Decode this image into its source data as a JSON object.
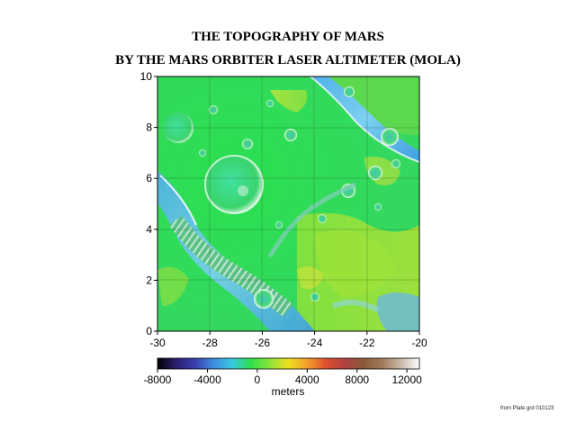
{
  "title": {
    "line1": "THE TOPOGRAPHY OF MARS",
    "line2": "BY THE MARS ORBITER LASER ALTIMETER (MOLA)"
  },
  "map": {
    "x_ticks": [
      "-30",
      "-28",
      "-26",
      "-24",
      "-22",
      "-20"
    ],
    "y_ticks": [
      "0",
      "2",
      "4",
      "6",
      "8",
      "10"
    ],
    "xlim": [
      -30,
      -20
    ],
    "ylim": [
      0,
      10
    ]
  },
  "colorbar": {
    "ticks": [
      "-8000",
      "-4000",
      "0",
      "4000",
      "8000",
      "12000"
    ],
    "unit_label": "meters",
    "range": [
      -8000,
      13000
    ],
    "colors": [
      "#000000",
      "#2a1f6e",
      "#3a3fb0",
      "#3d8de0",
      "#38c8e0",
      "#2ee04a",
      "#8ee33a",
      "#f0e020",
      "#f2a02c",
      "#e0502e",
      "#b04040",
      "#8a5a3a",
      "#a07a5a",
      "#c8b8a8",
      "#ffffff"
    ]
  },
  "credit": "from Plate grd 010123"
}
